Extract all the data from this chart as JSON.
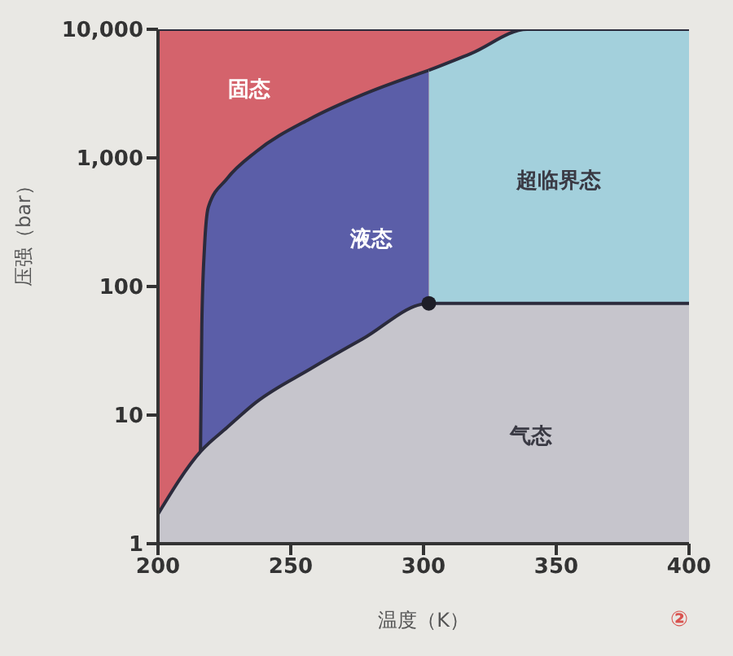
{
  "chart_data": {
    "type": "area",
    "xlabel": "温度（K）",
    "ylabel": "压强（bar）",
    "xlim": [
      200,
      400
    ],
    "xticks": [
      200,
      250,
      300,
      350,
      400
    ],
    "ylim": [
      1,
      10000
    ],
    "yticks": [
      1,
      10,
      100,
      {
        "value": 1000,
        "label": "1,000"
      },
      {
        "value": 10000,
        "label": "10,000"
      }
    ],
    "log": "y",
    "annotations": [
      "固态",
      "液态",
      "超临界态",
      "气态",
      "②"
    ],
    "series": [
      {
        "color": "#d4636c",
        "x": [
          200,
          339
        ],
        "values": [
          10000,
          10000
        ]
      },
      {
        "color": "#5b5ea8",
        "x": [
          216,
          216.5,
          217.5,
          219,
          226,
          237,
          257,
          277,
          302
        ],
        "values": [
          5.2,
          50,
          200,
          417,
          690,
          1120,
          2000,
          3100,
          4800
        ]
      },
      {
        "color": "#a3d0dc",
        "x": [
          302,
          318,
          339,
          400
        ],
        "values": [
          4800,
          6500,
          10000,
          10000
        ]
      },
      {
        "color": "#c6c5cc",
        "x": [
          200,
          216,
          226,
          237,
          257,
          277,
          302,
          400
        ],
        "values": [
          1.7,
          5.2,
          8,
          12.6,
          22.6,
          39,
          74,
          74
        ]
      },
      {
        "type": "scatter",
        "color": "#1e1e28",
        "marker": "circle",
        "x": [
          302
        ],
        "values": [
          74
        ]
      }
    ]
  }
}
